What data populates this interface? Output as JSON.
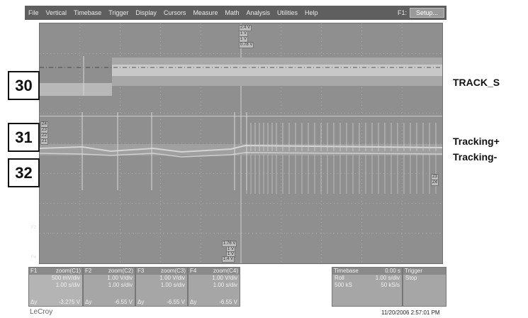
{
  "menu": {
    "items": [
      "File",
      "Vertical",
      "Timebase",
      "Trigger",
      "Display",
      "Cursors",
      "Measure",
      "Math",
      "Analysis",
      "Utilities",
      "Help"
    ],
    "f1_label": "F1:",
    "setup_label": "Setup..."
  },
  "annotations": {
    "box_30": "30",
    "box_31": "31",
    "box_32": "32",
    "track_s": "TRACK_S",
    "tracking_plus": "Tracking+",
    "tracking_minus": "Tracking-"
  },
  "screen": {
    "top_tags": [
      "2.4 V",
      "1 V",
      "1 V",
      "0.78 V"
    ],
    "bottom_tags": [
      "1.76 V",
      "1 V",
      "1 V",
      "1.4 V"
    ],
    "left_tags": [
      "Z4",
      "Z3",
      "Z2",
      "Z1"
    ],
    "right_tags": [
      "Z3",
      "Z4"
    ],
    "f_labels": [
      "F2",
      "F4"
    ]
  },
  "channels": [
    {
      "id": "F1",
      "source": "zoom(C1)",
      "vdiv": "500 mV/div",
      "tdiv": "1.00 s/div",
      "dy": "-3.275 V"
    },
    {
      "id": "F2",
      "source": "zoom(C2)",
      "vdiv": "1.00 V/div",
      "tdiv": "1.00 s/div",
      "dy": "-6.55 V"
    },
    {
      "id": "F3",
      "source": "zoom(C3)",
      "vdiv": "1.00 V/div",
      "tdiv": "1.00 s/div",
      "dy": "-6.55 V"
    },
    {
      "id": "F4",
      "source": "zoom(C4)",
      "vdiv": "1.00 V/div",
      "tdiv": "1.00 s/div",
      "dy": "-6.55 V"
    }
  ],
  "dy_label": "Δy",
  "timebase": {
    "label": "Timebase",
    "value": "0.00 s",
    "mode": "Roll",
    "tdiv": "1.00 s/div",
    "samples": "500 kS",
    "rate": "50 kS/s"
  },
  "trigger": {
    "label": "Trigger",
    "state": "Stop"
  },
  "brand": "LeCroy",
  "timestamp": "11/20/2006 2:57:01 PM",
  "colors": {
    "menubar": "#5f5f5f",
    "screen": "#8f8f8f",
    "trace": "#d4d4d4",
    "grid": "#bdbdbd"
  }
}
